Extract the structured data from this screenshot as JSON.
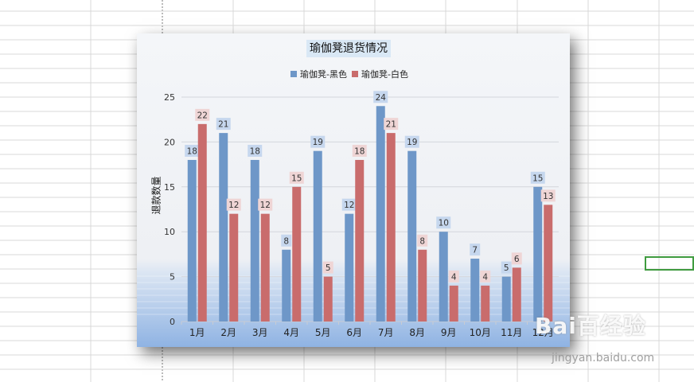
{
  "chart_data": {
    "type": "bar",
    "title": "瑜伽凳退货情况",
    "ylabel": "退款数量",
    "xlabel": "",
    "categories": [
      "1月",
      "2月",
      "3月",
      "4月",
      "5月",
      "6月",
      "7月",
      "8月",
      "9月",
      "10月",
      "11月",
      "12月"
    ],
    "series": [
      {
        "name": "瑜伽凳-黑色",
        "values": [
          18,
          21,
          18,
          8,
          19,
          12,
          24,
          19,
          10,
          7,
          5,
          15
        ],
        "color": "#6e97c8",
        "label_bg": "#c6d7ee"
      },
      {
        "name": "瑜伽凳-白色",
        "values": [
          22,
          12,
          12,
          15,
          5,
          18,
          21,
          8,
          4,
          4,
          6,
          13
        ],
        "color": "#c96c6c",
        "label_bg": "#efd5d5"
      }
    ],
    "ylim": [
      0,
      25
    ],
    "yticks": [
      0,
      5,
      10,
      15,
      20,
      25
    ],
    "grid": true,
    "legend": "top"
  },
  "watermark": {
    "text": "Bai百经验",
    "sub": "jingyan.baidu.com"
  },
  "colors": {
    "grid_line": "#d9d9d9",
    "selection": "#3f9b3f"
  }
}
